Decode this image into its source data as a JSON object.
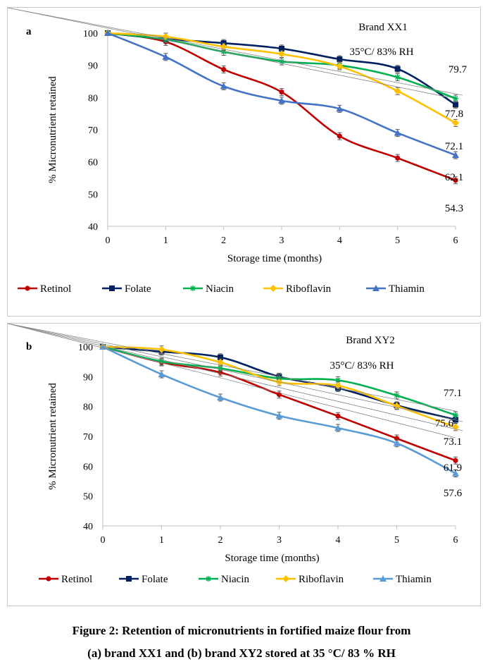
{
  "caption": {
    "line1": "Figure 2: Retention of micronutrients in fortified maize flour from",
    "line2": "(a) brand XX1 and (b) brand XY2 stored at 35 °C/ 83 % RH"
  },
  "chart_data": [
    {
      "type": "line",
      "panel_label": "a",
      "title": "Brand XX1",
      "annotation": "35°C/ 83% RH",
      "xlabel": "Storage time (months)",
      "ylabel": "% Micronutrient retained",
      "x": [
        0,
        1,
        2,
        3,
        4,
        5,
        6
      ],
      "xlim": [
        0,
        6
      ],
      "ylim": [
        40,
        100
      ],
      "yticks": [
        40,
        50,
        60,
        70,
        80,
        90,
        100
      ],
      "grid": false,
      "legend": "bottom",
      "series": [
        {
          "name": "Retinol",
          "color": "#c00000",
          "marker": "circle",
          "values": [
            100,
            97.3,
            88.7,
            81.7,
            68.0,
            61.2,
            54.3
          ]
        },
        {
          "name": "Folate",
          "color": "#002060",
          "marker": "square",
          "values": [
            100,
            98.2,
            96.9,
            95.2,
            91.9,
            88.9,
            77.8
          ]
        },
        {
          "name": "Niacin",
          "color": "#00b050",
          "marker": "asterisk",
          "values": [
            100,
            98.0,
            94.2,
            91.2,
            90.0,
            86.3,
            79.7
          ]
        },
        {
          "name": "Riboflavin",
          "color": "#ffc000",
          "marker": "diamond",
          "values": [
            100,
            98.9,
            95.8,
            93.5,
            89.7,
            82.0,
            72.1
          ]
        },
        {
          "name": "Thiamin",
          "color": "#4472c4",
          "marker": "triangle",
          "values": [
            100,
            92.6,
            83.5,
            79.0,
            76.5,
            69.0,
            62.1
          ]
        }
      ],
      "data_labels": [
        "79.7",
        "77.8",
        "72.1",
        "62.1",
        "54.3"
      ]
    },
    {
      "type": "line",
      "panel_label": "b",
      "title": "Brand XY2",
      "annotation": "35°C/ 83% RH",
      "xlabel": "Storage time (months)",
      "ylabel": "% Micronutrient retained",
      "x": [
        0,
        1,
        2,
        3,
        4,
        5,
        6
      ],
      "xlim": [
        0,
        6
      ],
      "ylim": [
        40,
        100
      ],
      "yticks": [
        40,
        50,
        60,
        70,
        80,
        90,
        100
      ],
      "grid": false,
      "legend": "bottom",
      "series": [
        {
          "name": "Retinol",
          "color": "#c00000",
          "marker": "circle",
          "values": [
            100,
            94.8,
            91.4,
            84.0,
            76.8,
            69.3,
            61.9
          ]
        },
        {
          "name": "Folate",
          "color": "#002060",
          "marker": "square",
          "values": [
            100,
            98.4,
            96.5,
            90.0,
            86.2,
            80.4,
            75.6
          ]
        },
        {
          "name": "Niacin",
          "color": "#00b050",
          "marker": "asterisk",
          "values": [
            100,
            95.1,
            92.8,
            89.4,
            88.8,
            83.7,
            77.1
          ]
        },
        {
          "name": "Riboflavin",
          "color": "#ffc000",
          "marker": "diamond",
          "values": [
            100,
            99.1,
            94.8,
            88.2,
            87.0,
            80.2,
            73.1
          ]
        },
        {
          "name": "Thiamin",
          "color": "#5b9bd5",
          "marker": "triangle",
          "values": [
            100,
            90.8,
            83.0,
            76.9,
            72.8,
            67.7,
            57.6
          ]
        }
      ],
      "data_labels": [
        "77.1",
        "75.6",
        "73.1",
        "61.9",
        "57.6"
      ]
    }
  ]
}
